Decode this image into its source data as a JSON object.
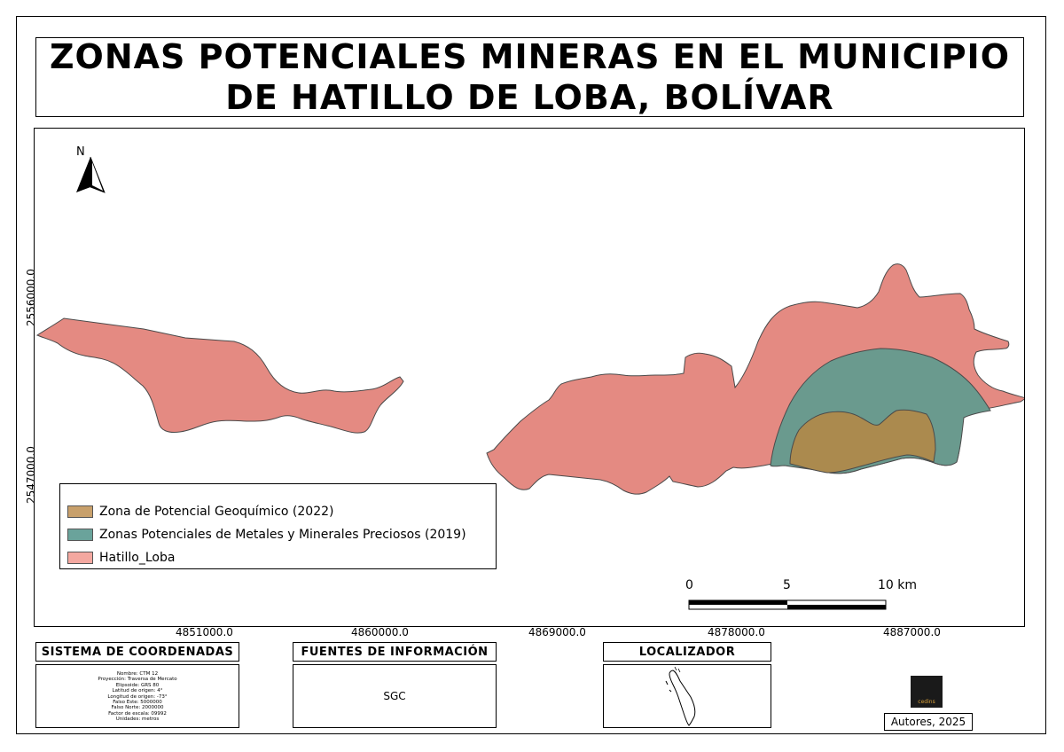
{
  "title": {
    "line1": "ZONAS POTENCIALES MINERAS EN EL MUNICIPIO",
    "line2": "DE HATILLO DE LOBA, BOLÍVAR"
  },
  "north_arrow": {
    "label": "N",
    "icon": "north-arrow-icon"
  },
  "axes": {
    "x_ticks": [
      "4851000.0",
      "4860000.0",
      "4869000.0",
      "4878000.0",
      "4887000.0"
    ],
    "y_ticks": [
      "2556000.0",
      "2547000.0"
    ]
  },
  "legend": {
    "items": [
      {
        "label": "Zona de Potencial Geoquímico (2022)",
        "color": "#c8a06b"
      },
      {
        "label": "Zonas Potenciales de Metales y Minerales Preciosos (2019)",
        "color": "#6aa39b"
      },
      {
        "label": "Hatillo_Loba",
        "color": "#f4a8a0"
      }
    ]
  },
  "map_colors": {
    "municipality": "#e48a82",
    "precious_metals": "#6a9a8e",
    "geochemical": "#ab8a4e",
    "outline": "#4a4a4a"
  },
  "scale_bar": {
    "labels": [
      "0",
      "5",
      "10 km"
    ]
  },
  "footer": {
    "crs": {
      "heading": "SISTEMA DE COORDENADAS",
      "lines": [
        "Nombre: CTM 12",
        "Proyección: Traversa de Mercato",
        "Elipsoide: GRS 80",
        "Latitud de origen: 4°",
        "Longitud de origen: -73°",
        "Falso Este: 5000000",
        "Falso Norte: 2000000",
        "Factor de escala: 09992",
        "Unidades: metros"
      ]
    },
    "sources": {
      "heading": "FUENTES DE INFORMACIÓN",
      "text": "SGC"
    },
    "locator": {
      "heading": "LOCALIZADOR"
    },
    "logo": {
      "text": "cedins"
    },
    "authors": "Autores, 2025"
  }
}
